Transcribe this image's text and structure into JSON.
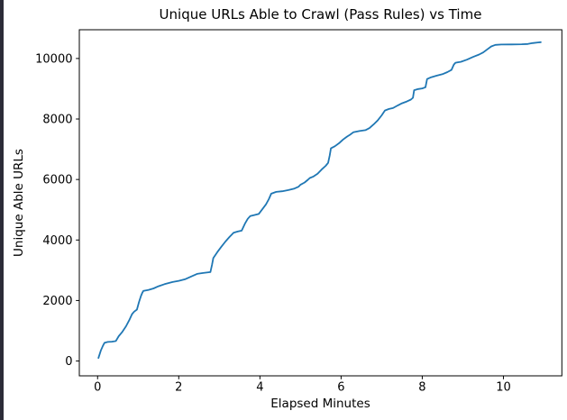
{
  "window": {
    "background": "#ffffff",
    "left_strip_color": "#2b2b38"
  },
  "chart_data": {
    "type": "line",
    "title": "Unique URLs Able to Crawl (Pass Rules) vs Time",
    "xlabel": "Elapsed Minutes",
    "ylabel": "Unique Able URLs",
    "grid": false,
    "legend": "none",
    "axis_color": "#000000",
    "text_color": "#000000",
    "xlim": [
      -0.45,
      11.44
    ],
    "ylim": [
      -490,
      10950
    ],
    "x_ticks": [
      0,
      2,
      4,
      6,
      8,
      10
    ],
    "y_ticks": [
      0,
      2000,
      4000,
      6000,
      8000,
      10000
    ],
    "series": [
      {
        "name": "unique-able-urls",
        "color": "#1f77b4",
        "x": [
          0.02,
          0.08,
          0.13,
          0.17,
          0.25,
          0.35,
          0.45,
          0.52,
          0.6,
          0.7,
          0.78,
          0.85,
          0.9,
          0.97,
          1.02,
          1.07,
          1.1,
          1.13,
          1.25,
          1.38,
          1.5,
          1.65,
          1.85,
          2.0,
          2.15,
          2.3,
          2.45,
          2.6,
          2.78,
          2.82,
          2.85,
          2.95,
          3.05,
          3.15,
          3.25,
          3.35,
          3.45,
          3.55,
          3.63,
          3.7,
          3.76,
          3.85,
          3.97,
          4.05,
          4.15,
          4.22,
          4.28,
          4.4,
          4.55,
          4.7,
          4.85,
          4.95,
          5.0,
          5.1,
          5.18,
          5.23,
          5.32,
          5.42,
          5.52,
          5.62,
          5.68,
          5.72,
          5.75,
          5.85,
          5.95,
          6.05,
          6.15,
          6.22,
          6.3,
          6.45,
          6.6,
          6.7,
          6.8,
          6.9,
          7.0,
          7.08,
          7.18,
          7.28,
          7.4,
          7.5,
          7.62,
          7.72,
          7.77,
          7.8,
          7.9,
          8.0,
          8.08,
          8.12,
          8.22,
          8.35,
          8.5,
          8.62,
          8.72,
          8.78,
          8.82,
          8.95,
          9.1,
          9.25,
          9.4,
          9.5,
          9.6,
          9.7,
          9.8,
          9.95,
          10.2,
          10.45,
          10.6,
          10.72,
          10.85,
          10.92
        ],
        "y": [
          100,
          350,
          500,
          600,
          630,
          640,
          660,
          820,
          950,
          1150,
          1350,
          1550,
          1630,
          1700,
          1950,
          2150,
          2250,
          2320,
          2350,
          2400,
          2470,
          2540,
          2610,
          2650,
          2700,
          2790,
          2880,
          2910,
          2940,
          3180,
          3400,
          3600,
          3780,
          3950,
          4100,
          4240,
          4280,
          4310,
          4540,
          4700,
          4790,
          4820,
          4860,
          5000,
          5180,
          5350,
          5530,
          5590,
          5610,
          5650,
          5700,
          5760,
          5830,
          5900,
          5990,
          6050,
          6100,
          6190,
          6330,
          6450,
          6550,
          6800,
          7030,
          7100,
          7200,
          7320,
          7420,
          7480,
          7560,
          7600,
          7630,
          7700,
          7820,
          7950,
          8120,
          8280,
          8330,
          8360,
          8450,
          8520,
          8580,
          8640,
          8700,
          8950,
          8990,
          9010,
          9050,
          9320,
          9380,
          9430,
          9480,
          9550,
          9620,
          9800,
          9860,
          9890,
          9960,
          10050,
          10130,
          10200,
          10300,
          10400,
          10450,
          10460,
          10465,
          10470,
          10480,
          10510,
          10530,
          10540
        ]
      }
    ]
  }
}
